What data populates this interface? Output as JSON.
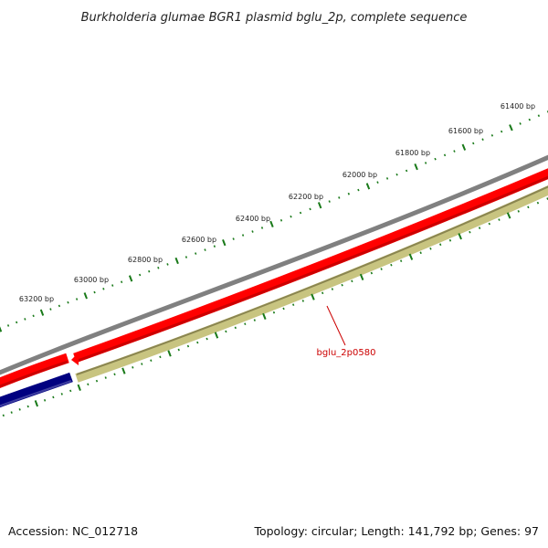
{
  "title": "Burkholderia glumae BGR1 plasmid bglu_2p, complete sequence",
  "footer": {
    "accession": "Accession: NC_012718",
    "summary": "Topology: circular; Length: 141,792 bp; Genes: 97"
  },
  "ruler": {
    "labels": [
      "61400 bp",
      "61600 bp",
      "61800 bp",
      "62000 bp",
      "62200 bp",
      "62400 bp",
      "62600 bp",
      "62800 bp",
      "63000 bp",
      "63200 bp"
    ]
  },
  "genes": [
    {
      "label": "bglu_2p0580",
      "color": "#cc0000"
    }
  ],
  "colors": {
    "backbone": "#808080",
    "forward_gene": "#ff0000",
    "reverse_gene": "#000080",
    "gc_track": "#c8c480",
    "tick": "#1a7a1a",
    "label_line": "#cc0000"
  }
}
